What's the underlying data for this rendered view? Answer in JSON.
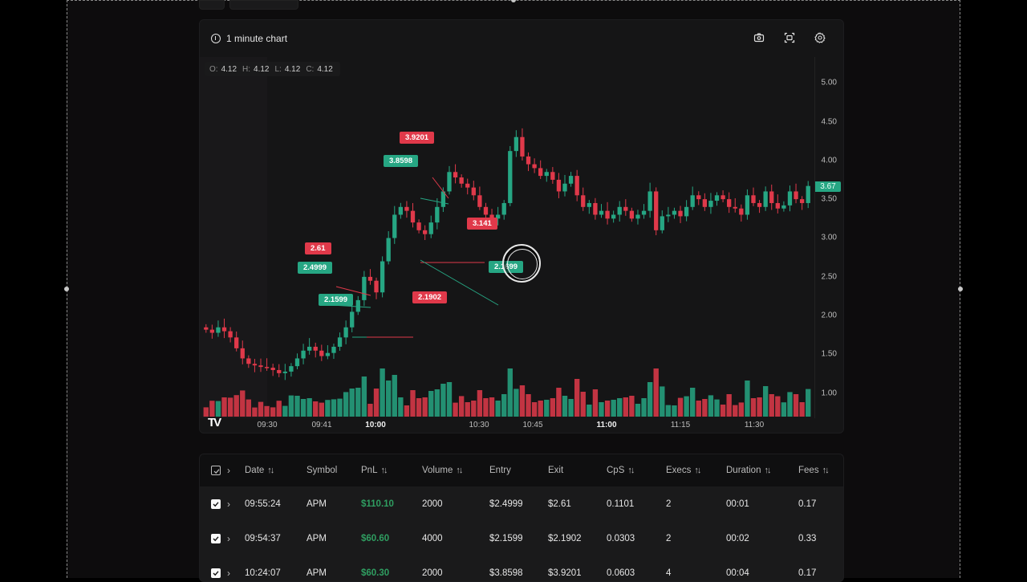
{
  "chart": {
    "title": "1 minute chart",
    "tools": [
      "camera-icon",
      "fullscreen-icon",
      "settings-icon"
    ],
    "ohlc": {
      "O": "4.12",
      "H": "4.12",
      "L": "4.12",
      "C": "4.12"
    },
    "current_price": "3.67",
    "colors": {
      "up": "#26a683",
      "down": "#e0394a",
      "background": "#151516"
    },
    "trade_labels": [
      {
        "text": "3.9201",
        "side": "sell"
      },
      {
        "text": "3.8598",
        "side": "buy"
      },
      {
        "text": "3.141",
        "side": "sell"
      },
      {
        "text": "2.61",
        "side": "sell"
      },
      {
        "text": "2.4999",
        "side": "buy"
      },
      {
        "text": "2.1699",
        "side": "buy"
      },
      {
        "text": "2.1599",
        "side": "buy"
      },
      {
        "text": "2.1902",
        "side": "sell"
      }
    ]
  },
  "chart_data": {
    "type": "candlestick",
    "title": "1 minute chart",
    "symbol": "APM",
    "price_axis_ticks": [
      "5.00",
      "4.50",
      "4.00",
      "3.50",
      "3.00",
      "2.50",
      "2.00",
      "1.50",
      "1.00"
    ],
    "time_axis_ticks": [
      {
        "label": "09:30",
        "bold": false
      },
      {
        "label": "09:41",
        "bold": false
      },
      {
        "label": "10:00",
        "bold": true
      },
      {
        "label": "10:30",
        "bold": false
      },
      {
        "label": "10:45",
        "bold": false
      },
      {
        "label": "11:00",
        "bold": true
      },
      {
        "label": "11:15",
        "bold": false
      },
      {
        "label": "11:30",
        "bold": false
      }
    ],
    "ylim": [
      0.8,
      5.3
    ],
    "last_price": 3.67,
    "close_series": [
      1.82,
      1.78,
      1.85,
      1.8,
      1.72,
      1.58,
      1.45,
      1.38,
      1.36,
      1.34,
      1.33,
      1.3,
      1.26,
      1.28,
      1.35,
      1.45,
      1.55,
      1.6,
      1.55,
      1.48,
      1.52,
      1.6,
      1.72,
      1.85,
      2.05,
      2.2,
      2.5,
      2.45,
      2.3,
      2.7,
      3.0,
      3.3,
      3.4,
      3.35,
      3.2,
      3.1,
      3.05,
      3.2,
      3.4,
      3.6,
      3.85,
      3.78,
      3.7,
      3.65,
      3.55,
      3.4,
      3.3,
      3.25,
      3.3,
      3.45,
      4.12,
      4.3,
      4.05,
      3.95,
      3.9,
      3.8,
      3.85,
      3.75,
      3.6,
      3.7,
      3.8,
      3.55,
      3.4,
      3.45,
      3.3,
      3.35,
      3.25,
      3.3,
      3.4,
      3.35,
      3.25,
      3.3,
      3.35,
      3.6,
      3.1,
      3.28,
      3.3,
      3.35,
      3.28,
      3.4,
      3.55,
      3.5,
      3.4,
      3.48,
      3.55,
      3.5,
      3.4,
      3.38,
      3.3,
      3.55,
      3.45,
      3.4,
      3.6,
      3.45,
      3.38,
      3.42,
      3.6,
      3.5,
      3.45,
      3.67
    ]
  },
  "table": {
    "columns": [
      {
        "label": "Date",
        "sortable": true
      },
      {
        "label": "Symbol",
        "sortable": false
      },
      {
        "label": "PnL",
        "sortable": true
      },
      {
        "label": "Volume",
        "sortable": true
      },
      {
        "label": "Entry",
        "sortable": false
      },
      {
        "label": "Exit",
        "sortable": false
      },
      {
        "label": "CpS",
        "sortable": true
      },
      {
        "label": "Execs",
        "sortable": true
      },
      {
        "label": "Duration",
        "sortable": true
      },
      {
        "label": "Fees",
        "sortable": true
      }
    ],
    "rows": [
      {
        "date": "09:55:24",
        "symbol": "APM",
        "pnl": "$110.10",
        "volume": "2000",
        "entry": "$2.4999",
        "exit": "$2.61",
        "cps": "0.1101",
        "execs": "2",
        "duration": "00:01",
        "fees": "0.17",
        "checked": true
      },
      {
        "date": "09:54:37",
        "symbol": "APM",
        "pnl": "$60.60",
        "volume": "4000",
        "entry": "$2.1599",
        "exit": "$2.1902",
        "cps": "0.0303",
        "execs": "2",
        "duration": "00:02",
        "fees": "0.33",
        "checked": true
      },
      {
        "date": "10:24:07",
        "symbol": "APM",
        "pnl": "$60.30",
        "volume": "2000",
        "entry": "$3.8598",
        "exit": "$3.9201",
        "cps": "0.0603",
        "execs": "4",
        "duration": "00:04",
        "fees": "0.17",
        "checked": true
      }
    ]
  }
}
